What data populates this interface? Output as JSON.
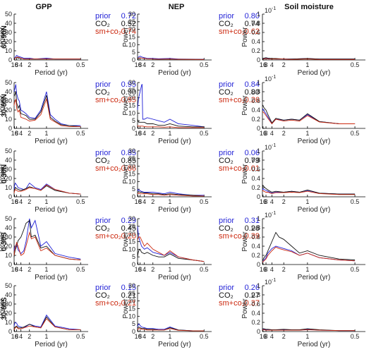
{
  "colors": {
    "prior": "#1f1fd6",
    "co2": "#111111",
    "smco2": "#cc2a10"
  },
  "chart_data": {
    "type": "line",
    "layout": "grid 5 rows x 3 columns",
    "columns": [
      "GPP",
      "NEP",
      "Soil moisture"
    ],
    "rows": [
      "60-90N",
      "30-60N",
      "0-30N",
      "0-30S",
      "30-60S"
    ],
    "xlabel": "Period (yr)",
    "ylabel": "Power",
    "x_scale": "reciprocal (frequency)",
    "x_ticks": [
      "16",
      "8",
      "4",
      "2",
      "1",
      "0.5"
    ],
    "x_tick_values": [
      16,
      8,
      4,
      2,
      1,
      0.5
    ],
    "exponent_label_x": "10",
    "exponent_label_sup": "-1",
    "columns_axes": [
      {
        "ylim": [
          0,
          50
        ],
        "yticks": [
          "0",
          "10",
          "20",
          "30",
          "40",
          "50"
        ]
      },
      {
        "ylim": [
          0,
          30
        ],
        "yticks": [
          "0",
          "5",
          "10",
          "15",
          "20",
          "25",
          "30"
        ]
      },
      {
        "ylim": [
          0,
          1
        ],
        "yticks": [
          "0",
          "0.2",
          "0.4",
          "0.6",
          "0.8",
          "1"
        ]
      }
    ],
    "legend_names": [
      "prior",
      "CO₂",
      "sm+co₂"
    ],
    "legend_values": {
      "GPP": [
        [
          "0.72",
          "0.52",
          "0.74"
        ],
        [
          "0.95",
          "0.90",
          "0.95"
        ],
        [
          "0.85",
          "0.85",
          "0.86"
        ],
        [
          "0.29",
          "0.45",
          "0.20"
        ],
        [
          "0.15",
          "0.21",
          "0.21"
        ]
      ],
      "NEP": [
        [
          "0.80",
          "0.74",
          "0.62"
        ],
        [
          "0.84",
          "0.80",
          "0.26"
        ],
        [
          "0.06",
          "0.79",
          "-0.01"
        ],
        [
          "0.31",
          "0.26",
          "0.39"
        ],
        [
          "0.26",
          "0.27",
          "0.37"
        ]
      ]
    },
    "series": [
      {
        "panel": "GPP 60-90N",
        "x": [
          16,
          12,
          8,
          6,
          4,
          3,
          2,
          1.5,
          1,
          0.8,
          0.5
        ],
        "prior": [
          2,
          3,
          5,
          4,
          3,
          2,
          2,
          1,
          2,
          1,
          1
        ],
        "co2": [
          1,
          2,
          3,
          2,
          2,
          1,
          1,
          1,
          1,
          1,
          1
        ],
        "smco2": [
          1,
          2,
          3,
          3,
          2,
          1,
          1,
          1,
          1,
          1,
          1
        ]
      },
      {
        "panel": "GPP 30-60N",
        "x": [
          20,
          16,
          12,
          10,
          8,
          6,
          5,
          4,
          3,
          2.5,
          2,
          1.5,
          1.2,
          1,
          0.9,
          0.8,
          0.7,
          0.6,
          0.5
        ],
        "prior": [
          40,
          42,
          45,
          48,
          38,
          32,
          30,
          20,
          18,
          16,
          12,
          11,
          20,
          40,
          15,
          10,
          5,
          3,
          3
        ],
        "co2": [
          35,
          36,
          38,
          40,
          28,
          22,
          25,
          16,
          15,
          14,
          10,
          10,
          18,
          36,
          12,
          8,
          4,
          3,
          2
        ],
        "smco2": [
          25,
          28,
          30,
          32,
          22,
          18,
          20,
          12,
          11,
          10,
          8,
          9,
          15,
          32,
          10,
          7,
          3,
          2,
          2
        ]
      },
      {
        "panel": "GPP 0-30N",
        "x": [
          20,
          16,
          12,
          8,
          6,
          4,
          3,
          2.5,
          2,
          1.5,
          1.2,
          1,
          0.8,
          0.6,
          0.5
        ],
        "prior": [
          8,
          12,
          15,
          13,
          10,
          9,
          8,
          9,
          15,
          10,
          8,
          14,
          8,
          4,
          3
        ],
        "co2": [
          6,
          8,
          10,
          9,
          8,
          7,
          8,
          9,
          11,
          9,
          7,
          12,
          7,
          4,
          3
        ],
        "smco2": [
          4,
          6,
          8,
          7,
          6,
          6,
          7,
          8,
          10,
          9,
          7,
          13,
          8,
          4,
          3
        ]
      },
      {
        "panel": "GPP 0-30S",
        "x": [
          20,
          16,
          12,
          8,
          6,
          4,
          3,
          2.5,
          2,
          1.8,
          1.5,
          1.2,
          1,
          0.8,
          0.6,
          0.5
        ],
        "prior": [
          15,
          18,
          20,
          22,
          16,
          12,
          15,
          25,
          50,
          40,
          48,
          20,
          25,
          12,
          8,
          6
        ],
        "co2": [
          8,
          12,
          16,
          20,
          26,
          30,
          38,
          45,
          48,
          30,
          32,
          18,
          20,
          10,
          6,
          5
        ],
        "smco2": [
          10,
          15,
          18,
          24,
          20,
          10,
          12,
          20,
          35,
          28,
          30,
          15,
          18,
          10,
          6,
          5
        ]
      },
      {
        "panel": "GPP 30-60S",
        "x": [
          20,
          16,
          12,
          8,
          6,
          4,
          3,
          2,
          1.5,
          1.2,
          1,
          0.8,
          0.6,
          0.5
        ],
        "prior": [
          6,
          8,
          10,
          9,
          6,
          5,
          4,
          8,
          6,
          5,
          18,
          6,
          3,
          2
        ],
        "co2": [
          3,
          4,
          5,
          6,
          4,
          4,
          5,
          8,
          5,
          4,
          16,
          5,
          2,
          2
        ],
        "smco2": [
          2,
          3,
          4,
          5,
          3,
          3,
          4,
          6,
          5,
          4,
          14,
          5,
          2,
          2
        ]
      },
      {
        "panel": "NEP 60-90N",
        "x": [
          16,
          12,
          8,
          6,
          4,
          3,
          2,
          1.5,
          1,
          0.8,
          0.5
        ],
        "prior": [
          1.5,
          2,
          2.5,
          2,
          1.5,
          1,
          1,
          0.8,
          1,
          0.6,
          0.4
        ],
        "co2": [
          0.8,
          1,
          1.5,
          1.2,
          1,
          0.8,
          0.6,
          0.5,
          0.6,
          0.4,
          0.3
        ],
        "smco2": [
          1,
          1.2,
          1.5,
          1.2,
          1,
          0.8,
          0.6,
          0.5,
          0.6,
          0.4,
          0.3
        ]
      },
      {
        "panel": "NEP 30-60N",
        "x": [
          20,
          16,
          12,
          8,
          6,
          5.5,
          5,
          4,
          3,
          2,
          1.5,
          1.2,
          1,
          0.8,
          0.6,
          0.5
        ],
        "prior": [
          12,
          16,
          20,
          24,
          28,
          29,
          6,
          6,
          7,
          6,
          5,
          4,
          6,
          3,
          2,
          1
        ],
        "co2": [
          6,
          5,
          4,
          4,
          4,
          4,
          4,
          4,
          3,
          3,
          2,
          2,
          3,
          1.5,
          1,
          1
        ],
        "smco2": [
          2,
          1.5,
          1.5,
          1.5,
          1.5,
          1.5,
          1.5,
          1.2,
          1,
          1,
          1,
          0.8,
          1,
          0.5,
          0.5,
          0.5
        ]
      },
      {
        "panel": "NEP 0-30N",
        "x": [
          20,
          16,
          12,
          8,
          6,
          4,
          3,
          2,
          1.5,
          1.2,
          1,
          0.8,
          0.6,
          0.5
        ],
        "prior": [
          5,
          4,
          4.5,
          4,
          3.5,
          3,
          3,
          3,
          2.5,
          2,
          3,
          2,
          1,
          1
        ],
        "co2": [
          3,
          3,
          3.5,
          3,
          3,
          2.5,
          2.5,
          2,
          2,
          1.5,
          2,
          1.5,
          1,
          0.5
        ],
        "smco2": [
          2,
          2,
          2.5,
          2,
          2,
          2,
          2,
          1.5,
          1.5,
          1,
          1.5,
          1,
          0.5,
          0.5
        ]
      },
      {
        "panel": "NEP 0-30S",
        "x": [
          20,
          16,
          12,
          8,
          6,
          4,
          3,
          2,
          1.5,
          1.2,
          1,
          0.8,
          0.6,
          0.5
        ],
        "prior": [
          25,
          22,
          18,
          15,
          12,
          10,
          11,
          8,
          7,
          6,
          8,
          5,
          3,
          2
        ],
        "co2": [
          5,
          7,
          9,
          10,
          8,
          7,
          8,
          6,
          5,
          5,
          7,
          4,
          3,
          2
        ],
        "smco2": [
          16,
          17,
          18,
          18,
          16,
          12,
          14,
          10,
          8,
          6,
          9,
          5,
          3,
          2
        ]
      },
      {
        "panel": "NEP 30-60S",
        "x": [
          20,
          16,
          12,
          8,
          6,
          4,
          3,
          2,
          1.5,
          1.2,
          1,
          0.8,
          0.6,
          0.5
        ],
        "prior": [
          3,
          4,
          5,
          4,
          3,
          2.5,
          2,
          2,
          1.5,
          1.5,
          3,
          1,
          0.5,
          0.5
        ],
        "co2": [
          2,
          2.5,
          3,
          2.5,
          2,
          2,
          1.5,
          1.5,
          1,
          1,
          2.5,
          1,
          0.5,
          0.5
        ],
        "smco2": [
          1,
          1.5,
          2,
          2,
          1.5,
          1.5,
          1,
          1,
          1,
          1,
          2,
          0.8,
          0.4,
          0.4
        ]
      },
      {
        "panel": "Soil moisture 60-90N",
        "x": [
          16,
          12,
          8,
          6,
          4,
          3,
          2,
          1.5,
          1,
          0.8,
          0.5
        ],
        "prior": [
          0.02,
          0.03,
          0.04,
          0.03,
          0.03,
          0.02,
          0.02,
          0.02,
          0.03,
          0.02,
          0.02
        ],
        "co2": [
          0.03,
          0.04,
          0.05,
          0.04,
          0.03,
          0.03,
          0.02,
          0.02,
          0.03,
          0.02,
          0.02
        ],
        "smco2": [
          0.02,
          0.02,
          0.03,
          0.02,
          0.02,
          0.02,
          0.02,
          0.01,
          0.02,
          0.01,
          0.01
        ]
      },
      {
        "panel": "Soil moisture 30-60N",
        "x": [
          20,
          16,
          12,
          8,
          6,
          4,
          3,
          2,
          1.5,
          1.2,
          1,
          0.8,
          0.6,
          0.5
        ],
        "prior": [
          0.4,
          0.42,
          0.38,
          0.32,
          0.25,
          0.1,
          0.2,
          0.18,
          0.2,
          0.18,
          0.3,
          0.15,
          0.1,
          0.1
        ],
        "co2": [
          0.48,
          0.5,
          0.45,
          0.4,
          0.3,
          0.12,
          0.22,
          0.18,
          0.2,
          0.18,
          0.32,
          0.15,
          0.1,
          0.1
        ],
        "smco2": [
          0.35,
          0.36,
          0.34,
          0.28,
          0.22,
          0.1,
          0.2,
          0.16,
          0.18,
          0.16,
          0.28,
          0.14,
          0.1,
          0.1
        ]
      },
      {
        "panel": "Soil moisture 0-30N",
        "x": [
          20,
          16,
          12,
          8,
          6,
          4,
          3,
          2,
          1.5,
          1.2,
          1,
          0.8,
          0.6,
          0.5
        ],
        "prior": [
          0.15,
          0.18,
          0.16,
          0.14,
          0.12,
          0.08,
          0.1,
          0.1,
          0.12,
          0.1,
          0.14,
          0.08,
          0.06,
          0.06
        ],
        "co2": [
          0.2,
          0.25,
          0.22,
          0.18,
          0.15,
          0.1,
          0.12,
          0.1,
          0.12,
          0.1,
          0.15,
          0.08,
          0.06,
          0.06
        ],
        "smco2": [
          0.12,
          0.14,
          0.12,
          0.1,
          0.1,
          0.07,
          0.09,
          0.09,
          0.1,
          0.09,
          0.12,
          0.07,
          0.05,
          0.05
        ]
      },
      {
        "panel": "Soil moisture 0-30S",
        "x": [
          20,
          16,
          12,
          8,
          6,
          4,
          3,
          2.5,
          2,
          1.5,
          1.2,
          1,
          0.8,
          0.6,
          0.5
        ],
        "prior": [
          0.05,
          0.06,
          0.1,
          0.15,
          0.25,
          0.35,
          0.4,
          0.38,
          0.35,
          0.3,
          0.2,
          0.25,
          0.15,
          0.1,
          0.08
        ],
        "co2": [
          0.08,
          0.1,
          0.15,
          0.2,
          0.3,
          0.5,
          0.7,
          0.6,
          0.55,
          0.4,
          0.25,
          0.3,
          0.2,
          0.12,
          0.1
        ],
        "smco2": [
          0.05,
          0.06,
          0.08,
          0.12,
          0.2,
          0.3,
          0.38,
          0.35,
          0.32,
          0.28,
          0.2,
          0.25,
          0.15,
          0.1,
          0.08
        ]
      },
      {
        "panel": "Soil moisture 30-60S",
        "x": [
          20,
          16,
          12,
          8,
          6,
          4,
          3,
          2,
          1.5,
          1.2,
          1,
          0.8,
          0.6,
          0.5
        ],
        "prior": [
          0.04,
          0.05,
          0.05,
          0.04,
          0.04,
          0.03,
          0.03,
          0.04,
          0.03,
          0.03,
          0.05,
          0.03,
          0.02,
          0.02
        ],
        "co2": [
          0.05,
          0.06,
          0.06,
          0.05,
          0.05,
          0.04,
          0.04,
          0.05,
          0.04,
          0.04,
          0.06,
          0.04,
          0.02,
          0.02
        ],
        "smco2": [
          0.03,
          0.04,
          0.04,
          0.03,
          0.03,
          0.03,
          0.03,
          0.03,
          0.03,
          0.03,
          0.04,
          0.03,
          0.02,
          0.02
        ]
      }
    ]
  }
}
